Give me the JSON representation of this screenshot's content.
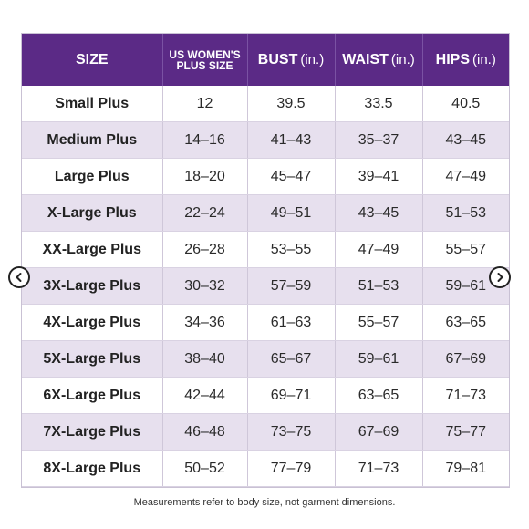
{
  "header": {
    "size": "SIZE",
    "us_size_line1": "US WOMEN'S",
    "us_size_line2": "PLUS SIZE",
    "bust": "BUST",
    "waist": "WAIST",
    "hips": "HIPS",
    "unit": "(in.)"
  },
  "rows": [
    {
      "size": "Small Plus",
      "us": "12",
      "bust": "39.5",
      "waist": "33.5",
      "hips": "40.5"
    },
    {
      "size": "Medium Plus",
      "us": "14–16",
      "bust": "41–43",
      "waist": "35–37",
      "hips": "43–45"
    },
    {
      "size": "Large Plus",
      "us": "18–20",
      "bust": "45–47",
      "waist": "39–41",
      "hips": "47–49"
    },
    {
      "size": "X-Large Plus",
      "us": "22–24",
      "bust": "49–51",
      "waist": "43–45",
      "hips": "51–53"
    },
    {
      "size": "XX-Large Plus",
      "us": "26–28",
      "bust": "53–55",
      "waist": "47–49",
      "hips": "55–57"
    },
    {
      "size": "3X-Large Plus",
      "us": "30–32",
      "bust": "57–59",
      "waist": "51–53",
      "hips": "59–61"
    },
    {
      "size": "4X-Large Plus",
      "us": "34–36",
      "bust": "61–63",
      "waist": "55–57",
      "hips": "63–65"
    },
    {
      "size": "5X-Large Plus",
      "us": "38–40",
      "bust": "65–67",
      "waist": "59–61",
      "hips": "67–69"
    },
    {
      "size": "6X-Large Plus",
      "us": "42–44",
      "bust": "69–71",
      "waist": "63–65",
      "hips": "71–73"
    },
    {
      "size": "7X-Large Plus",
      "us": "46–48",
      "bust": "73–75",
      "waist": "67–69",
      "hips": "75–77"
    },
    {
      "size": "8X-Large Plus",
      "us": "50–52",
      "bust": "77–79",
      "waist": "71–73",
      "hips": "79–81"
    }
  ],
  "footnote": "Measurements refer to body size, not garment dimensions.",
  "nav": {
    "prev_icon": "chevron-left-icon",
    "next_icon": "chevron-right-icon"
  },
  "colors": {
    "header_bg": "#5b2a86",
    "stripe": "#e7e0ee"
  }
}
